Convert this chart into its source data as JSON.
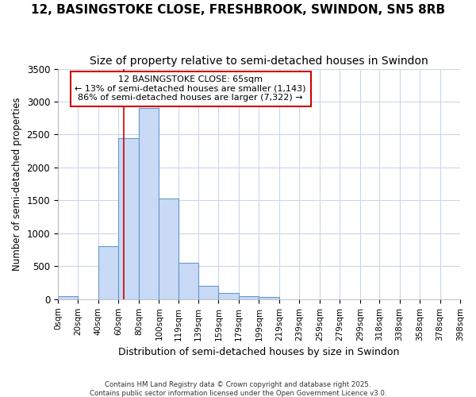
{
  "title": "12, BASINGSTOKE CLOSE, FRESHBROOK, SWINDON, SN5 8RB",
  "subtitle": "Size of property relative to semi-detached houses in Swindon",
  "xlabel": "Distribution of semi-detached houses by size in Swindon",
  "ylabel": "Number of semi-detached properties",
  "annotation_title": "12 BASINGSTOKE CLOSE: 65sqm",
  "annotation_line1": "← 13% of semi-detached houses are smaller (1,143)",
  "annotation_line2": "86% of semi-detached houses are larger (7,322) →",
  "footer1": "Contains HM Land Registry data © Crown copyright and database right 2025.",
  "footer2": "Contains public sector information licensed under the Open Government Licence v3.0.",
  "property_size": 65,
  "bin_edges": [
    0,
    20,
    40,
    60,
    80,
    100,
    119,
    139,
    159,
    179,
    199,
    219,
    239,
    259,
    279,
    299,
    318,
    338,
    358,
    378,
    398
  ],
  "bar_heights": [
    50,
    0,
    800,
    2450,
    2900,
    1530,
    550,
    200,
    100,
    50,
    30,
    0,
    0,
    0,
    0,
    0,
    0,
    0,
    0,
    0
  ],
  "bar_color": "#c8daf5",
  "bar_edge_color": "#6699cc",
  "red_line_color": "#cc0000",
  "annotation_box_color": "#cc0000",
  "grid_color": "#c8d8ec",
  "ylim": [
    0,
    3500
  ],
  "xlim": [
    0,
    398
  ],
  "tick_labels": [
    "0sqm",
    "20sqm",
    "40sqm",
    "60sqm",
    "80sqm",
    "100sqm",
    "119sqm",
    "139sqm",
    "159sqm",
    "179sqm",
    "199sqm",
    "219sqm",
    "239sqm",
    "259sqm",
    "279sqm",
    "299sqm",
    "318sqm",
    "338sqm",
    "358sqm",
    "378sqm",
    "398sqm"
  ],
  "background_color": "#ffffff",
  "title_fontsize": 11,
  "subtitle_fontsize": 10
}
